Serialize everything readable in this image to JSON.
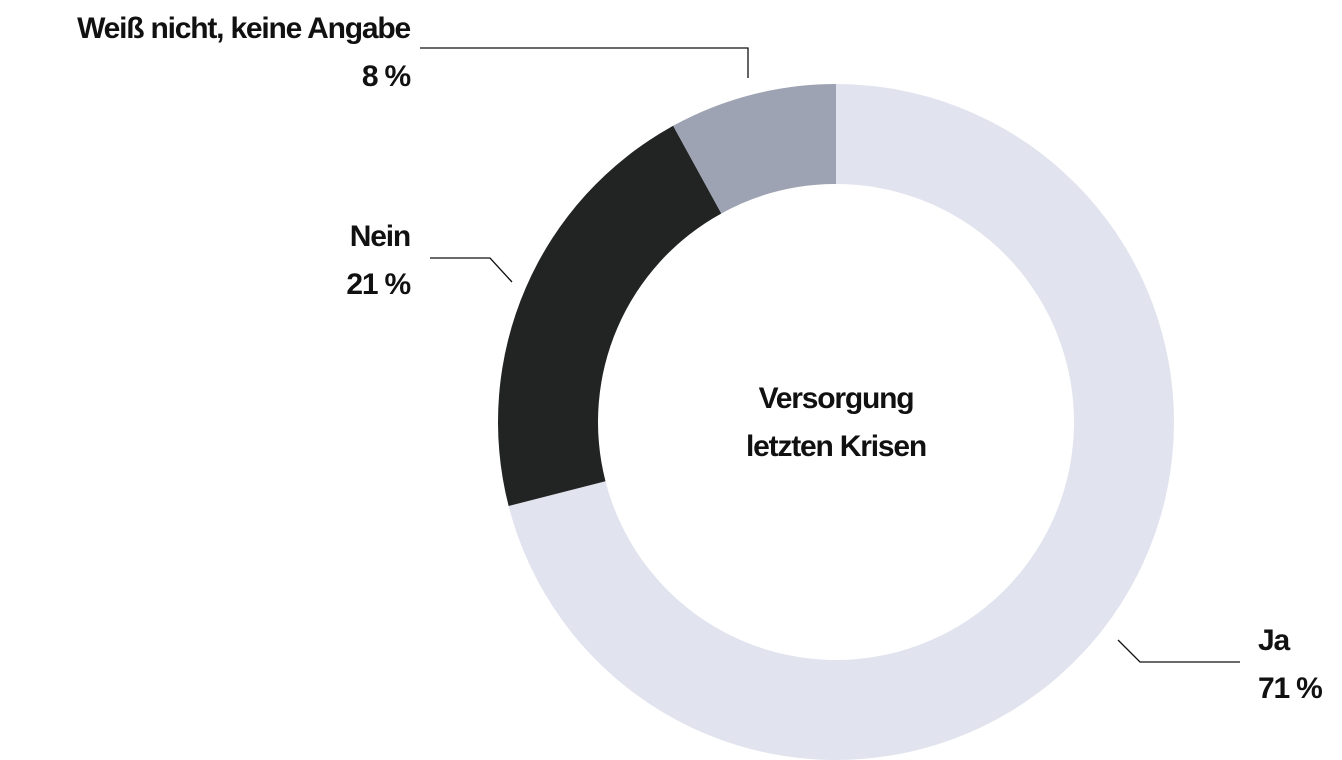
{
  "chart_data": {
    "type": "donut",
    "title": [
      "Versorgung",
      "letzten Krisen"
    ],
    "categories": [
      "Ja",
      "Nein",
      "Weiß nicht, keine Angabe"
    ],
    "values": [
      71,
      21,
      8
    ],
    "value_labels": [
      "71 %",
      "21 %",
      "8 %"
    ],
    "colors": [
      "#e1e3ee",
      "#222423",
      "#9da3b2"
    ]
  }
}
